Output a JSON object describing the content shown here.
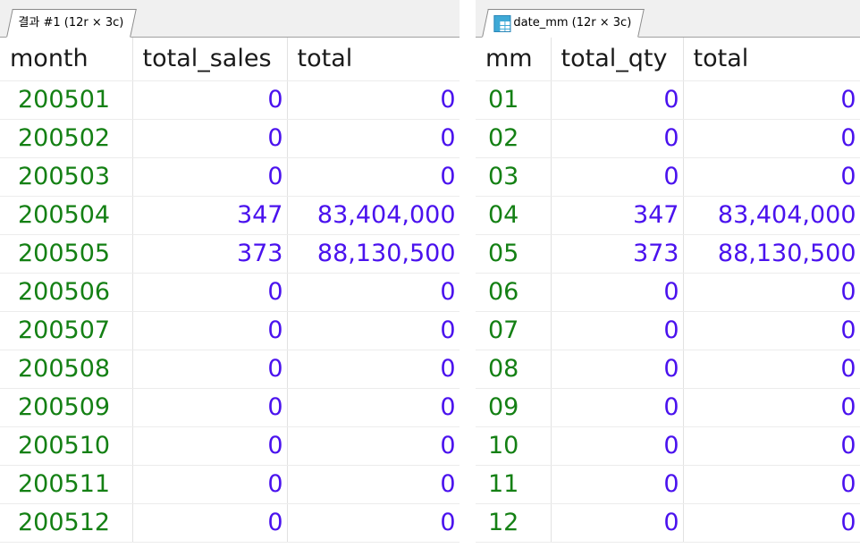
{
  "results": [
    {
      "tab_label": "결과 #1 (12r × 3c)",
      "show_table_icon": false,
      "icon": "",
      "columns": [
        "month",
        "total_sales",
        "total"
      ],
      "rows": [
        [
          "200501",
          "0",
          "0"
        ],
        [
          "200502",
          "0",
          "0"
        ],
        [
          "200503",
          "0",
          "0"
        ],
        [
          "200504",
          "347",
          "83,404,000"
        ],
        [
          "200505",
          "373",
          "88,130,500"
        ],
        [
          "200506",
          "0",
          "0"
        ],
        [
          "200507",
          "0",
          "0"
        ],
        [
          "200508",
          "0",
          "0"
        ],
        [
          "200509",
          "0",
          "0"
        ],
        [
          "200510",
          "0",
          "0"
        ],
        [
          "200511",
          "0",
          "0"
        ],
        [
          "200512",
          "0",
          "0"
        ]
      ]
    },
    {
      "tab_label": "date_mm (12r × 3c)",
      "show_table_icon": true,
      "icon": "table-icon",
      "columns": [
        "mm",
        "total_qty",
        "total"
      ],
      "rows": [
        [
          "01",
          "0",
          "0"
        ],
        [
          "02",
          "0",
          "0"
        ],
        [
          "03",
          "0",
          "0"
        ],
        [
          "04",
          "347",
          "83,404,000"
        ],
        [
          "05",
          "373",
          "88,130,500"
        ],
        [
          "06",
          "0",
          "0"
        ],
        [
          "07",
          "0",
          "0"
        ],
        [
          "08",
          "0",
          "0"
        ],
        [
          "09",
          "0",
          "0"
        ],
        [
          "10",
          "0",
          "0"
        ],
        [
          "11",
          "0",
          "0"
        ],
        [
          "12",
          "0",
          "0"
        ]
      ]
    }
  ],
  "colors": {
    "key_text": "#148014",
    "number_text": "#4a12ee",
    "header_text": "#1a1a1a"
  }
}
